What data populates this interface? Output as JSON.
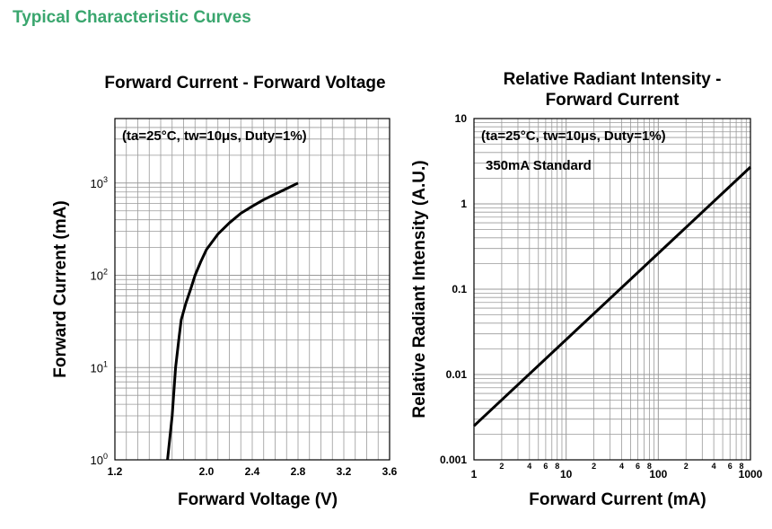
{
  "page": {
    "heading": "Typical Characteristic Curves",
    "heading_color": "#3aa66e"
  },
  "chart_data": [
    {
      "type": "line",
      "title": "Forward Current - Forward Voltage",
      "xlabel": "Forward Voltage (V)",
      "ylabel": "Forward Current (mA)",
      "x_scale": "linear",
      "y_scale": "log",
      "xlim": [
        1.2,
        3.6
      ],
      "ylim": [
        1,
        5000
      ],
      "x_ticks": [
        "1.2",
        "2.0",
        "2.4",
        "2.8",
        "3.2",
        "3.6"
      ],
      "x_tick_values": [
        1.2,
        2.0,
        2.4,
        2.8,
        3.2,
        3.6
      ],
      "y_tick_labels": [
        {
          "base": "10",
          "exp": "0",
          "value": 1
        },
        {
          "base": "10",
          "exp": "1",
          "value": 10
        },
        {
          "base": "10",
          "exp": "2",
          "value": 100
        },
        {
          "base": "10",
          "exp": "3",
          "value": 1000
        }
      ],
      "annotation": "(ta=25°C, tw=10μs, Duty=1%)",
      "grid": true,
      "series": [
        {
          "color": "#000000",
          "x": [
            1.66,
            1.7,
            1.73,
            1.76,
            1.78,
            1.82,
            1.86,
            1.9,
            1.95,
            2.0,
            2.1,
            2.2,
            2.3,
            2.4,
            2.5,
            2.6,
            2.7,
            2.8
          ],
          "y": [
            1,
            3,
            10,
            21,
            33,
            50,
            70,
            100,
            140,
            190,
            280,
            370,
            470,
            560,
            660,
            760,
            870,
            1000
          ]
        }
      ]
    },
    {
      "type": "line",
      "title": "Relative Radiant Intensity - Forward Current",
      "title_lines": [
        "Relative Radiant Intensity -",
        "Forward Current"
      ],
      "xlabel": "Forward Current (mA)",
      "ylabel": "Relative Radiant Intensity (A.U.)",
      "x_scale": "log",
      "y_scale": "log",
      "xlim": [
        1,
        1000
      ],
      "ylim": [
        0.001,
        10
      ],
      "x_ticks_major": [
        "1",
        "10",
        "100",
        "1000"
      ],
      "x_ticks_major_values": [
        1,
        10,
        100,
        1000
      ],
      "x_ticks_minor": [
        "2",
        "4",
        "6",
        "8",
        "2",
        "4",
        "6",
        "8",
        "2",
        "4",
        "6",
        "8"
      ],
      "x_ticks_minor_values": [
        2,
        4,
        6,
        8,
        20,
        40,
        60,
        80,
        200,
        400,
        600,
        800
      ],
      "y_ticks": [
        "0.001",
        "0.01",
        "0.1",
        "1",
        "10"
      ],
      "y_tick_values": [
        0.001,
        0.01,
        0.1,
        1,
        10
      ],
      "annotation": "(ta=25°C, tw=10μs, Duty=1%)",
      "annotation2": "350mA Standard",
      "grid": true,
      "series": [
        {
          "color": "#000000",
          "x": [
            1,
            1000
          ],
          "y": [
            0.0025,
            2.7
          ]
        }
      ]
    }
  ]
}
